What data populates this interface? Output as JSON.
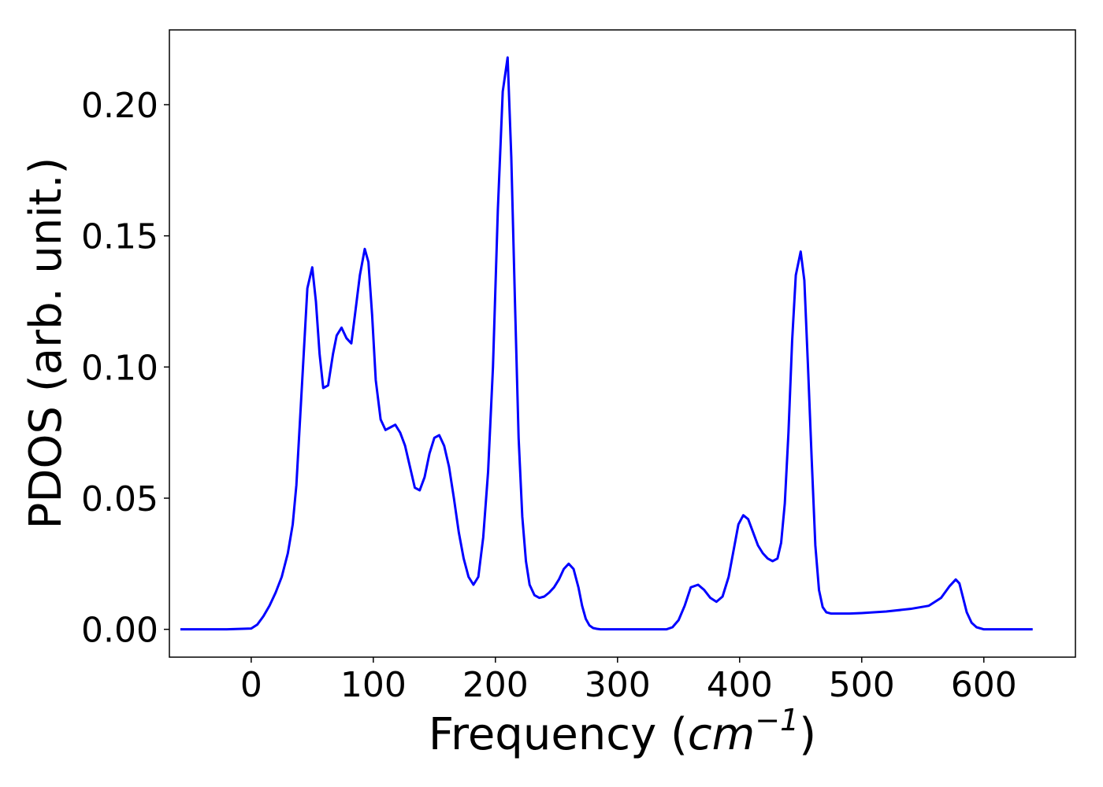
{
  "chart_data": {
    "type": "line",
    "xlabel": "Frequency (",
    "xlabel_unit": "cm",
    "xlabel_exp": "−1",
    "xlabel_close": ")",
    "ylabel": "PDOS (arb. unit.)",
    "xlim": [
      -67,
      675
    ],
    "ylim": [
      -0.0106,
      0.2285
    ],
    "xticks": [
      0,
      100,
      200,
      300,
      400,
      500,
      600
    ],
    "xtick_labels": [
      "0",
      "100",
      "200",
      "300",
      "400",
      "500",
      "600"
    ],
    "yticks": [
      0.0,
      0.05,
      0.1,
      0.15,
      0.2
    ],
    "ytick_labels": [
      "0.00",
      "0.05",
      "0.10",
      "0.15",
      "0.20"
    ],
    "grid": false,
    "line_color": "#0000ff",
    "series": [
      {
        "x": [
          -58,
          -40,
          -20,
          0,
          5,
          10,
          15,
          20,
          25,
          30,
          34,
          37,
          40,
          43,
          46,
          50,
          53,
          56,
          59,
          63,
          67,
          70,
          74,
          78,
          82,
          85,
          89,
          93,
          96,
          99,
          102,
          106,
          110,
          114,
          118,
          122,
          126,
          130,
          134,
          138,
          142,
          146,
          150,
          154,
          158,
          162,
          166,
          170,
          174,
          178,
          182,
          186,
          190,
          194,
          198,
          202,
          206,
          210,
          213,
          216,
          219,
          222,
          225,
          228,
          232,
          236,
          240,
          244,
          248,
          252,
          256,
          260,
          264,
          268,
          271,
          274,
          277,
          280,
          283,
          286,
          300,
          320,
          340,
          345,
          350,
          355,
          360,
          366,
          371,
          376,
          381,
          386,
          391,
          395,
          399,
          403,
          407,
          411,
          415,
          419,
          423,
          427,
          431,
          434,
          437,
          440,
          443,
          446,
          450,
          453,
          456,
          459,
          462,
          465,
          468,
          471,
          475,
          480,
          490,
          500,
          520,
          540,
          555,
          565,
          572,
          577,
          580,
          583,
          586,
          590,
          594,
          600,
          620,
          640
        ],
        "y": [
          0.0,
          0.0,
          0.0,
          0.0003,
          0.0018,
          0.005,
          0.009,
          0.014,
          0.02,
          0.029,
          0.04,
          0.055,
          0.08,
          0.105,
          0.13,
          0.138,
          0.125,
          0.105,
          0.092,
          0.093,
          0.105,
          0.112,
          0.115,
          0.111,
          0.109,
          0.12,
          0.135,
          0.145,
          0.14,
          0.12,
          0.095,
          0.08,
          0.076,
          0.077,
          0.078,
          0.075,
          0.07,
          0.062,
          0.054,
          0.053,
          0.058,
          0.067,
          0.073,
          0.074,
          0.07,
          0.062,
          0.05,
          0.037,
          0.027,
          0.02,
          0.017,
          0.02,
          0.035,
          0.06,
          0.1,
          0.16,
          0.205,
          0.218,
          0.18,
          0.125,
          0.073,
          0.043,
          0.026,
          0.017,
          0.013,
          0.012,
          0.0125,
          0.014,
          0.016,
          0.019,
          0.023,
          0.025,
          0.023,
          0.016,
          0.009,
          0.004,
          0.0015,
          0.0005,
          0.0002,
          0.0,
          0.0,
          0.0,
          0.0,
          0.0008,
          0.0035,
          0.009,
          0.016,
          0.017,
          0.015,
          0.012,
          0.0105,
          0.0125,
          0.02,
          0.03,
          0.04,
          0.0435,
          0.042,
          0.037,
          0.032,
          0.029,
          0.027,
          0.026,
          0.027,
          0.033,
          0.048,
          0.075,
          0.11,
          0.135,
          0.144,
          0.133,
          0.1,
          0.065,
          0.032,
          0.015,
          0.0085,
          0.0065,
          0.006,
          0.006,
          0.006,
          0.0062,
          0.0068,
          0.0078,
          0.009,
          0.012,
          0.0165,
          0.019,
          0.0175,
          0.012,
          0.0065,
          0.0025,
          0.0008,
          0.0,
          0.0,
          0.0
        ]
      }
    ]
  }
}
